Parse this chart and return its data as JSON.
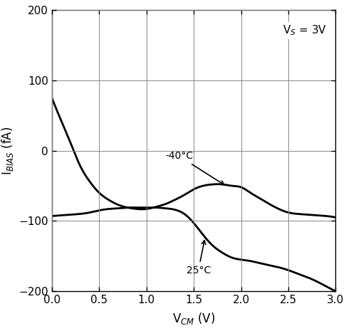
{
  "xlabel": "V$_{CM}$ (V)",
  "ylabel": "I$_{BIAS}$ (fA)",
  "annotation_vs": "V$_S$ = 3V",
  "annotation_40": "-40°C",
  "annotation_25": "25°C",
  "xlim": [
    0,
    3
  ],
  "ylim": [
    -200,
    200
  ],
  "xticks": [
    0,
    0.5,
    1.0,
    1.5,
    2.0,
    2.5,
    3.0
  ],
  "yticks": [
    -200,
    -100,
    0,
    100,
    200
  ],
  "line_color": "#000000",
  "background_color": "#ffffff",
  "curve_neg40_x": [
    0.0,
    0.05,
    0.1,
    0.2,
    0.3,
    0.4,
    0.5,
    0.6,
    0.7,
    0.8,
    0.9,
    1.0,
    1.1,
    1.2,
    1.3,
    1.4,
    1.5,
    1.6,
    1.7,
    1.8,
    1.9,
    2.0,
    2.1,
    2.2,
    2.3,
    2.4,
    2.5,
    2.6,
    2.7,
    2.8,
    2.9,
    3.0
  ],
  "curve_neg40_y": [
    75,
    58,
    42,
    10,
    -22,
    -44,
    -60,
    -70,
    -77,
    -81,
    -83,
    -83,
    -80,
    -76,
    -70,
    -63,
    -55,
    -50,
    -48,
    -48,
    -50,
    -52,
    -60,
    -68,
    -76,
    -83,
    -88,
    -90,
    -91,
    -92,
    -93,
    -95
  ],
  "curve_25_x": [
    0.0,
    0.1,
    0.2,
    0.3,
    0.4,
    0.5,
    0.6,
    0.7,
    0.8,
    0.9,
    1.0,
    1.1,
    1.2,
    1.3,
    1.4,
    1.5,
    1.6,
    1.7,
    1.8,
    1.9,
    2.0,
    2.1,
    2.2,
    2.3,
    2.4,
    2.5,
    2.6,
    2.7,
    2.8,
    2.9,
    3.0
  ],
  "curve_25_y": [
    -93,
    -92,
    -91,
    -90,
    -88,
    -85,
    -83,
    -82,
    -81,
    -81,
    -81,
    -81,
    -82,
    -84,
    -90,
    -103,
    -120,
    -135,
    -145,
    -152,
    -155,
    -157,
    -160,
    -163,
    -166,
    -170,
    -175,
    -180,
    -186,
    -193,
    -200
  ]
}
